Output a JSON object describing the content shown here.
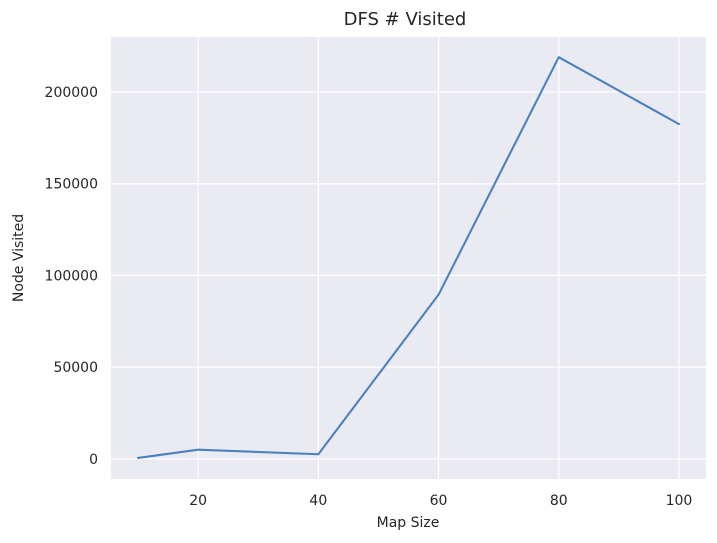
{
  "chart_data": {
    "type": "line",
    "title": "DFS # Visited",
    "xlabel": "Map Size",
    "ylabel": "Node Visited",
    "x": [
      10,
      20,
      40,
      60,
      80,
      100
    ],
    "series": [
      {
        "values": [
          500,
          5000,
          2500,
          89500,
          219000,
          182500
        ]
      }
    ],
    "xlim": [
      5.5,
      104.5
    ],
    "ylim": [
      -11000,
      230000
    ],
    "xticks": [
      20,
      40,
      60,
      80,
      100
    ],
    "yticks": [
      0,
      50000,
      100000,
      150000,
      200000
    ],
    "grid": true,
    "colors": {
      "plot_bg": "#EAEAF2",
      "grid": "#FFFFFF",
      "line": "#4C81BE",
      "text": "#262626"
    }
  }
}
